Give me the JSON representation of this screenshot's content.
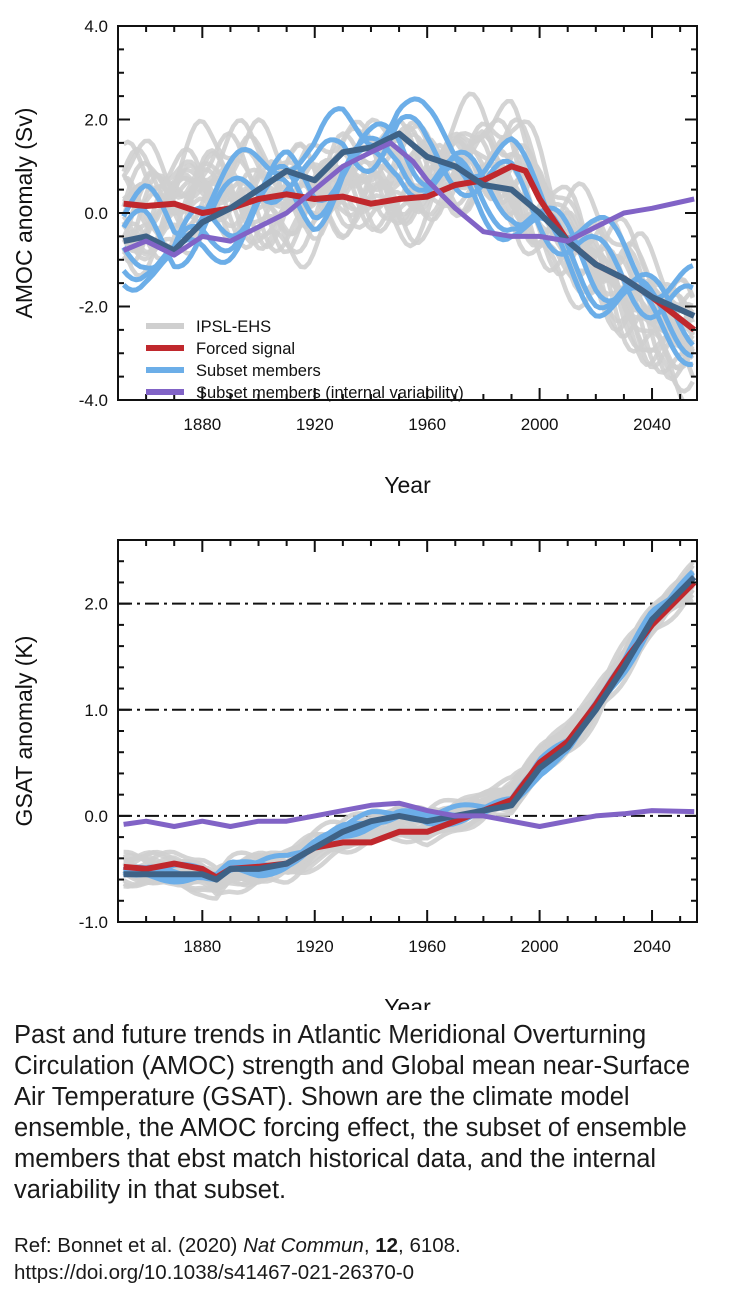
{
  "chart_data": [
    {
      "type": "line",
      "title": "",
      "xlabel": "Year",
      "ylabel": "AMOC anomaly (Sv)",
      "xlim": [
        1850,
        2056
      ],
      "ylim": [
        -4.0,
        4.0
      ],
      "x_ticks": [
        1880,
        1920,
        1960,
        2000,
        2040
      ],
      "x_tick_labels": [
        "1880",
        "1920",
        "1960",
        "2000",
        "2040"
      ],
      "y_ticks": [
        -4.0,
        -2.0,
        0.0,
        2.0,
        4.0
      ],
      "y_tick_labels": [
        "-4.0",
        "-2.0",
        "0.0",
        "2.0",
        "4.0"
      ],
      "legend_position": "bottom-left",
      "colors": {
        "ipsl": "#cfcfcf",
        "forced": "#c0282d",
        "subset": "#6caee8",
        "subset_mean": "#3e6286",
        "internal": "#8163c6"
      },
      "series": [
        {
          "name": "IPSL-EHS",
          "x": [
            1850,
            1860,
            1870,
            1880,
            1890,
            1900,
            1910,
            1920,
            1930,
            1940,
            1950,
            1960,
            1970,
            1980,
            1990,
            2000,
            2010,
            2020,
            2030,
            2040,
            2055
          ],
          "values": [
            0.0,
            0.2,
            0.4,
            0.6,
            0.5,
            0.5,
            0.4,
            0.5,
            0.6,
            0.7,
            0.8,
            0.9,
            1.0,
            1.1,
            0.9,
            0.3,
            -0.4,
            -1.0,
            -1.6,
            -2.1,
            -2.6
          ]
        },
        {
          "name": "Forced signal",
          "x": [
            1852,
            1860,
            1870,
            1880,
            1890,
            1900,
            1910,
            1920,
            1930,
            1940,
            1950,
            1960,
            1970,
            1980,
            1990,
            1995,
            2000,
            2010,
            2020,
            2030,
            2040,
            2055
          ],
          "values": [
            0.2,
            0.15,
            0.2,
            0.0,
            0.1,
            0.3,
            0.4,
            0.3,
            0.35,
            0.2,
            0.3,
            0.35,
            0.6,
            0.7,
            1.0,
            0.9,
            0.3,
            -0.6,
            -1.1,
            -1.4,
            -1.8,
            -2.5
          ]
        },
        {
          "name": "Subset members",
          "x": [
            1852,
            1860,
            1870,
            1880,
            1890,
            1900,
            1910,
            1920,
            1930,
            1940,
            1950,
            1960,
            1970,
            1980,
            1990,
            2000,
            2010,
            2020,
            2030,
            2040,
            2055
          ],
          "values": [
            -0.6,
            -0.5,
            -0.8,
            -0.2,
            0.1,
            0.5,
            0.9,
            0.7,
            1.3,
            1.4,
            1.7,
            1.2,
            1.0,
            0.6,
            0.5,
            0.0,
            -0.6,
            -1.1,
            -1.4,
            -1.8,
            -2.2
          ]
        },
        {
          "name": "Subset members (internal variability)",
          "x": [
            1852,
            1860,
            1870,
            1880,
            1890,
            1900,
            1910,
            1920,
            1930,
            1940,
            1947,
            1955,
            1960,
            1970,
            1980,
            1990,
            2000,
            2010,
            2020,
            2030,
            2040,
            2055
          ],
          "values": [
            -0.8,
            -0.6,
            -0.9,
            -0.5,
            -0.6,
            -0.3,
            0.0,
            0.5,
            1.0,
            1.3,
            1.5,
            1.1,
            0.7,
            0.1,
            -0.4,
            -0.5,
            -0.5,
            -0.6,
            -0.3,
            0.0,
            0.1,
            0.3
          ]
        }
      ]
    },
    {
      "type": "line",
      "title": "",
      "xlabel": "Year",
      "ylabel": "GSAT anomaly (K)",
      "xlim": [
        1850,
        2056
      ],
      "ylim": [
        -1.0,
        2.6
      ],
      "x_ticks": [
        1880,
        1920,
        1960,
        2000,
        2040
      ],
      "x_tick_labels": [
        "1880",
        "1920",
        "1960",
        "2000",
        "2040"
      ],
      "y_ticks": [
        -1.0,
        0.0,
        1.0,
        2.0
      ],
      "y_tick_labels": [
        "-1.0",
        "0.0",
        "1.0",
        "2.0"
      ],
      "reference_lines": [
        0.0,
        1.0,
        2.0
      ],
      "series": [
        {
          "name": "IPSL-EHS",
          "x": [
            1852,
            1860,
            1870,
            1880,
            1885,
            1890,
            1900,
            1910,
            1920,
            1930,
            1940,
            1950,
            1960,
            1970,
            1980,
            1990,
            2000,
            2010,
            2020,
            2030,
            2040,
            2055
          ],
          "values": [
            -0.5,
            -0.5,
            -0.5,
            -0.55,
            -0.65,
            -0.55,
            -0.5,
            -0.45,
            -0.3,
            -0.2,
            -0.1,
            -0.05,
            -0.1,
            0.0,
            0.1,
            0.2,
            0.5,
            0.75,
            1.05,
            1.45,
            1.85,
            2.25
          ]
        },
        {
          "name": "Forced signal",
          "x": [
            1852,
            1860,
            1870,
            1880,
            1885,
            1890,
            1900,
            1910,
            1920,
            1930,
            1940,
            1950,
            1960,
            1970,
            1980,
            1990,
            2000,
            2010,
            2020,
            2030,
            2040,
            2055
          ],
          "values": [
            -0.48,
            -0.5,
            -0.45,
            -0.5,
            -0.58,
            -0.5,
            -0.48,
            -0.45,
            -0.3,
            -0.25,
            -0.25,
            -0.15,
            -0.15,
            -0.05,
            0.05,
            0.15,
            0.5,
            0.7,
            1.05,
            1.45,
            1.8,
            2.2
          ]
        },
        {
          "name": "Subset members",
          "x": [
            1852,
            1860,
            1870,
            1880,
            1885,
            1890,
            1900,
            1910,
            1920,
            1930,
            1940,
            1950,
            1960,
            1970,
            1980,
            1990,
            2000,
            2010,
            2020,
            2030,
            2040,
            2055
          ],
          "values": [
            -0.55,
            -0.55,
            -0.55,
            -0.55,
            -0.6,
            -0.5,
            -0.5,
            -0.45,
            -0.3,
            -0.15,
            -0.05,
            0.0,
            -0.05,
            0.0,
            0.05,
            0.1,
            0.45,
            0.65,
            1.0,
            1.4,
            1.85,
            2.25
          ]
        },
        {
          "name": "Subset members (internal variability)",
          "x": [
            1852,
            1860,
            1870,
            1880,
            1890,
            1900,
            1910,
            1920,
            1930,
            1940,
            1950,
            1960,
            1970,
            1980,
            1990,
            2000,
            2010,
            2020,
            2030,
            2040,
            2055
          ],
          "values": [
            -0.08,
            -0.05,
            -0.1,
            -0.05,
            -0.1,
            -0.05,
            -0.05,
            0.0,
            0.05,
            0.1,
            0.12,
            0.05,
            0.0,
            0.0,
            -0.05,
            -0.1,
            -0.05,
            0.0,
            0.02,
            0.05,
            0.04
          ]
        }
      ]
    }
  ],
  "caption": "Past and future trends in Atlantic Meridional Overturning Circulation (AMOC) strength and Global mean near-Surface Air Temperature (GSAT). Shown are the climate model ensemble, the AMOC forcing effect, the subset of ensemble members that ebst match historical data, and the internal variability in that subset.",
  "reference": {
    "prefix": "Ref: Bonnet et al. (2020) ",
    "journal": "Nat Commun",
    "sep": ", ",
    "volume": "12",
    "pages": ", 6108.",
    "doi": "https://doi.org/10.1038/s41467-021-26370-0"
  }
}
